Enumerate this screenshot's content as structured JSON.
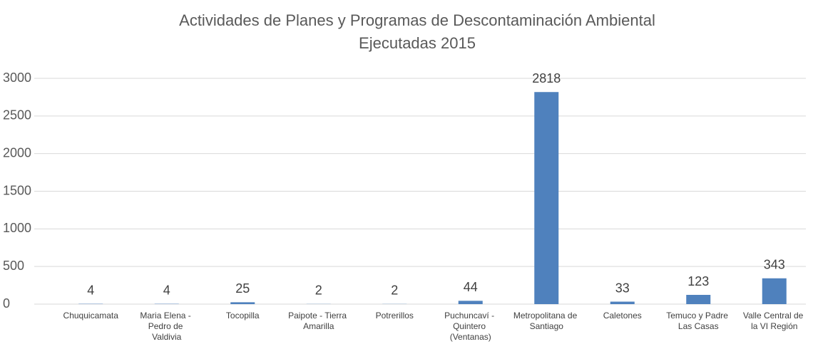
{
  "chart_data": {
    "type": "bar",
    "title": [
      "Actividades de Planes y Programas de Descontaminación Ambiental",
      "Ejecutadas 2015"
    ],
    "categories": [
      "Chuquicamata",
      "Maria Elena - Pedro de Valdivia",
      "Tocopilla",
      "Paipote - Tierra Amarilla",
      "Potrerillos",
      "Puchuncaví - Quintero (Ventanas)",
      "Metropolitana de Santiago",
      "Caletones",
      "Temuco y Padre Las Casas",
      "Valle Central de la VI Región"
    ],
    "values": [
      4,
      4,
      25,
      2,
      2,
      44,
      2818,
      33,
      123,
      343
    ],
    "color": "#4f81bd",
    "ylim": [
      0,
      3000
    ],
    "yticks": [
      0,
      500,
      1000,
      1500,
      2000,
      2500,
      3000
    ],
    "grid": true
  }
}
